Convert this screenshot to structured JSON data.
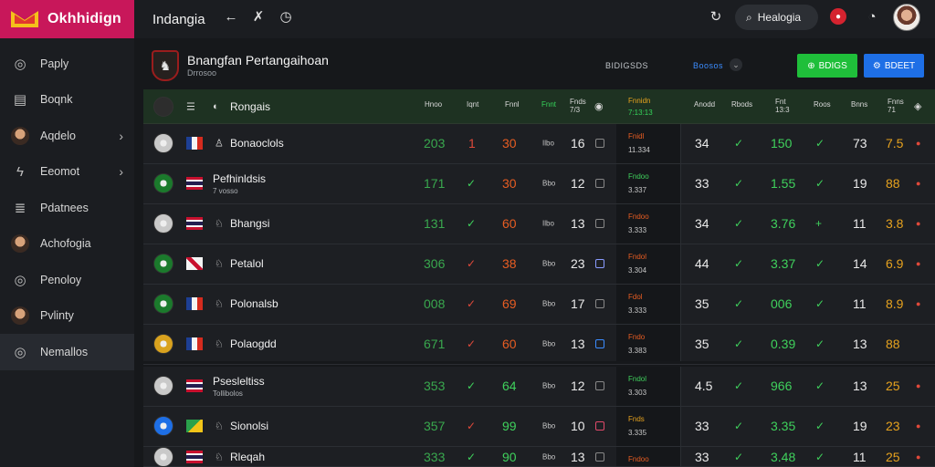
{
  "brand": {
    "name": "Okhhidign"
  },
  "sidebar": {
    "items": [
      {
        "label": "Paply",
        "icon": "globe-icon",
        "chevron": false
      },
      {
        "label": "Boqnk",
        "icon": "document-icon",
        "chevron": false
      },
      {
        "label": "Aqdelo",
        "icon": "avatar",
        "chevron": true
      },
      {
        "label": "Eeomot",
        "icon": "bolt-icon",
        "chevron": true
      },
      {
        "label": "Pdatnees",
        "icon": "list-icon",
        "chevron": false
      },
      {
        "label": "Achofogia",
        "icon": "avatar",
        "chevron": false
      },
      {
        "label": "Penoloy",
        "icon": "globe-icon",
        "chevron": false
      },
      {
        "label": "Pvlinty",
        "icon": "avatar",
        "chevron": false
      },
      {
        "label": "Nemallos",
        "icon": "globe-icon",
        "chevron": false
      }
    ],
    "active_index": 8
  },
  "topbar": {
    "title": "Indangia",
    "search_label": "Healogia"
  },
  "header": {
    "title": "Bnangfan Pertangaihoan",
    "subtitle": "Drrosoo",
    "mid_text": "BIDIGSDS",
    "mid_text2": "Boosos",
    "green_button": "BDIGS",
    "blue_button": "BDEET"
  },
  "table": {
    "head": {
      "team": "Rongais",
      "cols_left": [
        "Hnoo",
        "Iqnt",
        "Fnnl",
        "Fnnt",
        "Fnds 7/3"
      ],
      "mid": [
        "Fnnidn",
        "7:13:13"
      ],
      "cols_right": [
        "Anodd",
        "Rbods",
        "Fnt 13:3",
        "Roos",
        "Bnns",
        "Fnns 71"
      ]
    },
    "rows": [
      {
        "crest": "#c9c9c9",
        "flag": "fr",
        "team": "Bonaoclols",
        "sub": "",
        "pos": "♙",
        "c1": "203",
        "c1c": "dg",
        "c2": "1",
        "c2c": "r",
        "c2t": "text",
        "c3": "30",
        "c3c": "o",
        "c4": "Ilbo",
        "c5": "16",
        "sq": "#888",
        "ma": "Fnidl",
        "mac": "o",
        "mb": "11.334",
        "r1": "34",
        "r2": "✓",
        "r3": "150",
        "r4": "✓",
        "r5": "73",
        "r6": "7.5",
        "r6c": "y",
        "dot": "r"
      },
      {
        "crest": "#1b7a2c",
        "flag": "th",
        "team": "Pefhinldsis",
        "sub": "7 vosso",
        "pos": "",
        "c1": "171",
        "c1c": "dg",
        "c2": "✓",
        "c2c": "g",
        "c2t": "check",
        "c3": "30",
        "c3c": "o",
        "c4": "Bbo",
        "c5": "12",
        "sq": "#888",
        "ma": "Fndoo",
        "mac": "g",
        "mb": "3.337",
        "r1": "33",
        "r2": "✓",
        "r3": "1.55",
        "r4": "✓",
        "r5": "19",
        "r6": "88",
        "r6c": "y",
        "dot": "r"
      },
      {
        "crest": "#c9c9c9",
        "flag": "th",
        "team": "Bhangsi",
        "sub": "",
        "pos": "♘",
        "c1": "131",
        "c1c": "dg",
        "c2": "✓",
        "c2c": "g",
        "c2t": "check",
        "c3": "60",
        "c3c": "o",
        "c4": "Ilbo",
        "c5": "13",
        "sq": "#888",
        "ma": "Fndoo",
        "mac": "o",
        "mb": "3.333",
        "r1": "34",
        "r2": "✓",
        "r3": "3.76",
        "r4": "+",
        "r5": "11",
        "r6": "3.8",
        "r6c": "y",
        "dot": "r"
      },
      {
        "crest": "#1b7a2c",
        "flag": "uk",
        "team": "Petalol",
        "sub": "",
        "pos": "♘",
        "c1": "306",
        "c1c": "dg",
        "c2": "✓",
        "c2c": "r",
        "c2t": "check",
        "c3": "38",
        "c3c": "o",
        "c4": "Bbo",
        "c5": "23",
        "sq": "#8a9cff",
        "ma": "Fndol",
        "mac": "o",
        "mb": "3.304",
        "r1": "44",
        "r2": "✓",
        "r3": "3.37",
        "r4": "✓",
        "r5": "14",
        "r6": "6.9",
        "r6c": "y",
        "dot": "r"
      },
      {
        "crest": "#1b7a2c",
        "flag": "fr",
        "team": "Polonalsb",
        "sub": "",
        "pos": "♘",
        "c1": "008",
        "c1c": "dg",
        "c2": "✓",
        "c2c": "r",
        "c2t": "check",
        "c3": "69",
        "c3c": "o",
        "c4": "Bbo",
        "c5": "17",
        "sq": "#888",
        "ma": "Fdol",
        "mac": "o",
        "mb": "3.333",
        "r1": "35",
        "r2": "✓",
        "r3": "006",
        "r4": "✓",
        "r5": "11",
        "r6": "8.9",
        "r6c": "y",
        "dot": "r"
      },
      {
        "crest": "#d9a21e",
        "flag": "fr",
        "team": "Polaogdd",
        "sub": "",
        "pos": "♘",
        "c1": "671",
        "c1c": "dg",
        "c2": "✓",
        "c2c": "r",
        "c2t": "check",
        "c3": "60",
        "c3c": "o",
        "c4": "Bbo",
        "c5": "13",
        "sq": "#3b8cff",
        "ma": "Fndo",
        "mac": "o",
        "mb": "3.383",
        "r1": "35",
        "r2": "✓",
        "r3": "0.39",
        "r4": "✓",
        "r5": "13",
        "r6": "88",
        "r6c": "y",
        "dot": ""
      },
      {
        "crest": "#c9c9c9",
        "flag": "th",
        "team": "Psesleltiss",
        "sub": "Tollibolos",
        "pos": "",
        "c1": "353",
        "c1c": "dg",
        "c2": "✓",
        "c2c": "g",
        "c2t": "check",
        "c3": "64",
        "c3c": "g",
        "c4": "Bbo",
        "c5": "12",
        "sq": "#888",
        "ma": "Fndol",
        "mac": "g",
        "mb": "3.303",
        "r1": "4.5",
        "r2": "✓",
        "r3": "966",
        "r4": "✓",
        "r5": "13",
        "r6": "25",
        "r6c": "y",
        "dot": "r"
      },
      {
        "crest": "#1e6fe6",
        "flag": "gr",
        "team": "Sionolsi",
        "sub": "",
        "pos": "♘",
        "c1": "357",
        "c1c": "dg",
        "c2": "✓",
        "c2c": "r",
        "c2t": "check",
        "c3": "99",
        "c3c": "g",
        "c4": "Bbo",
        "c5": "10",
        "sq": "#e04a6a",
        "ma": "Fnds",
        "mac": "y",
        "mb": "3.335",
        "r1": "33",
        "r2": "✓",
        "r3": "3.35",
        "r4": "✓",
        "r5": "19",
        "r6": "23",
        "r6c": "y",
        "dot": "r"
      },
      {
        "crest": "#c9c9c9",
        "flag": "th",
        "team": "Rleqah",
        "sub": "",
        "pos": "♘",
        "c1": "333",
        "c1c": "dg",
        "c2": "✓",
        "c2c": "g",
        "c2t": "check",
        "c3": "90",
        "c3c": "g",
        "c4": "Bbo",
        "c5": "13",
        "sq": "#888",
        "ma": "Fndoo",
        "mac": "o",
        "mb": "3.343",
        "r1": "33",
        "r2": "✓",
        "r3": "3.48",
        "r4": "✓",
        "r5": "11",
        "r6": "25",
        "r6c": "y",
        "dot": "r"
      }
    ]
  },
  "colors": {
    "accent": "#c8175a",
    "green": "#1fbf3a",
    "blue": "#1e6fe6",
    "red": "#e0493a",
    "orange": "#e85d22"
  }
}
